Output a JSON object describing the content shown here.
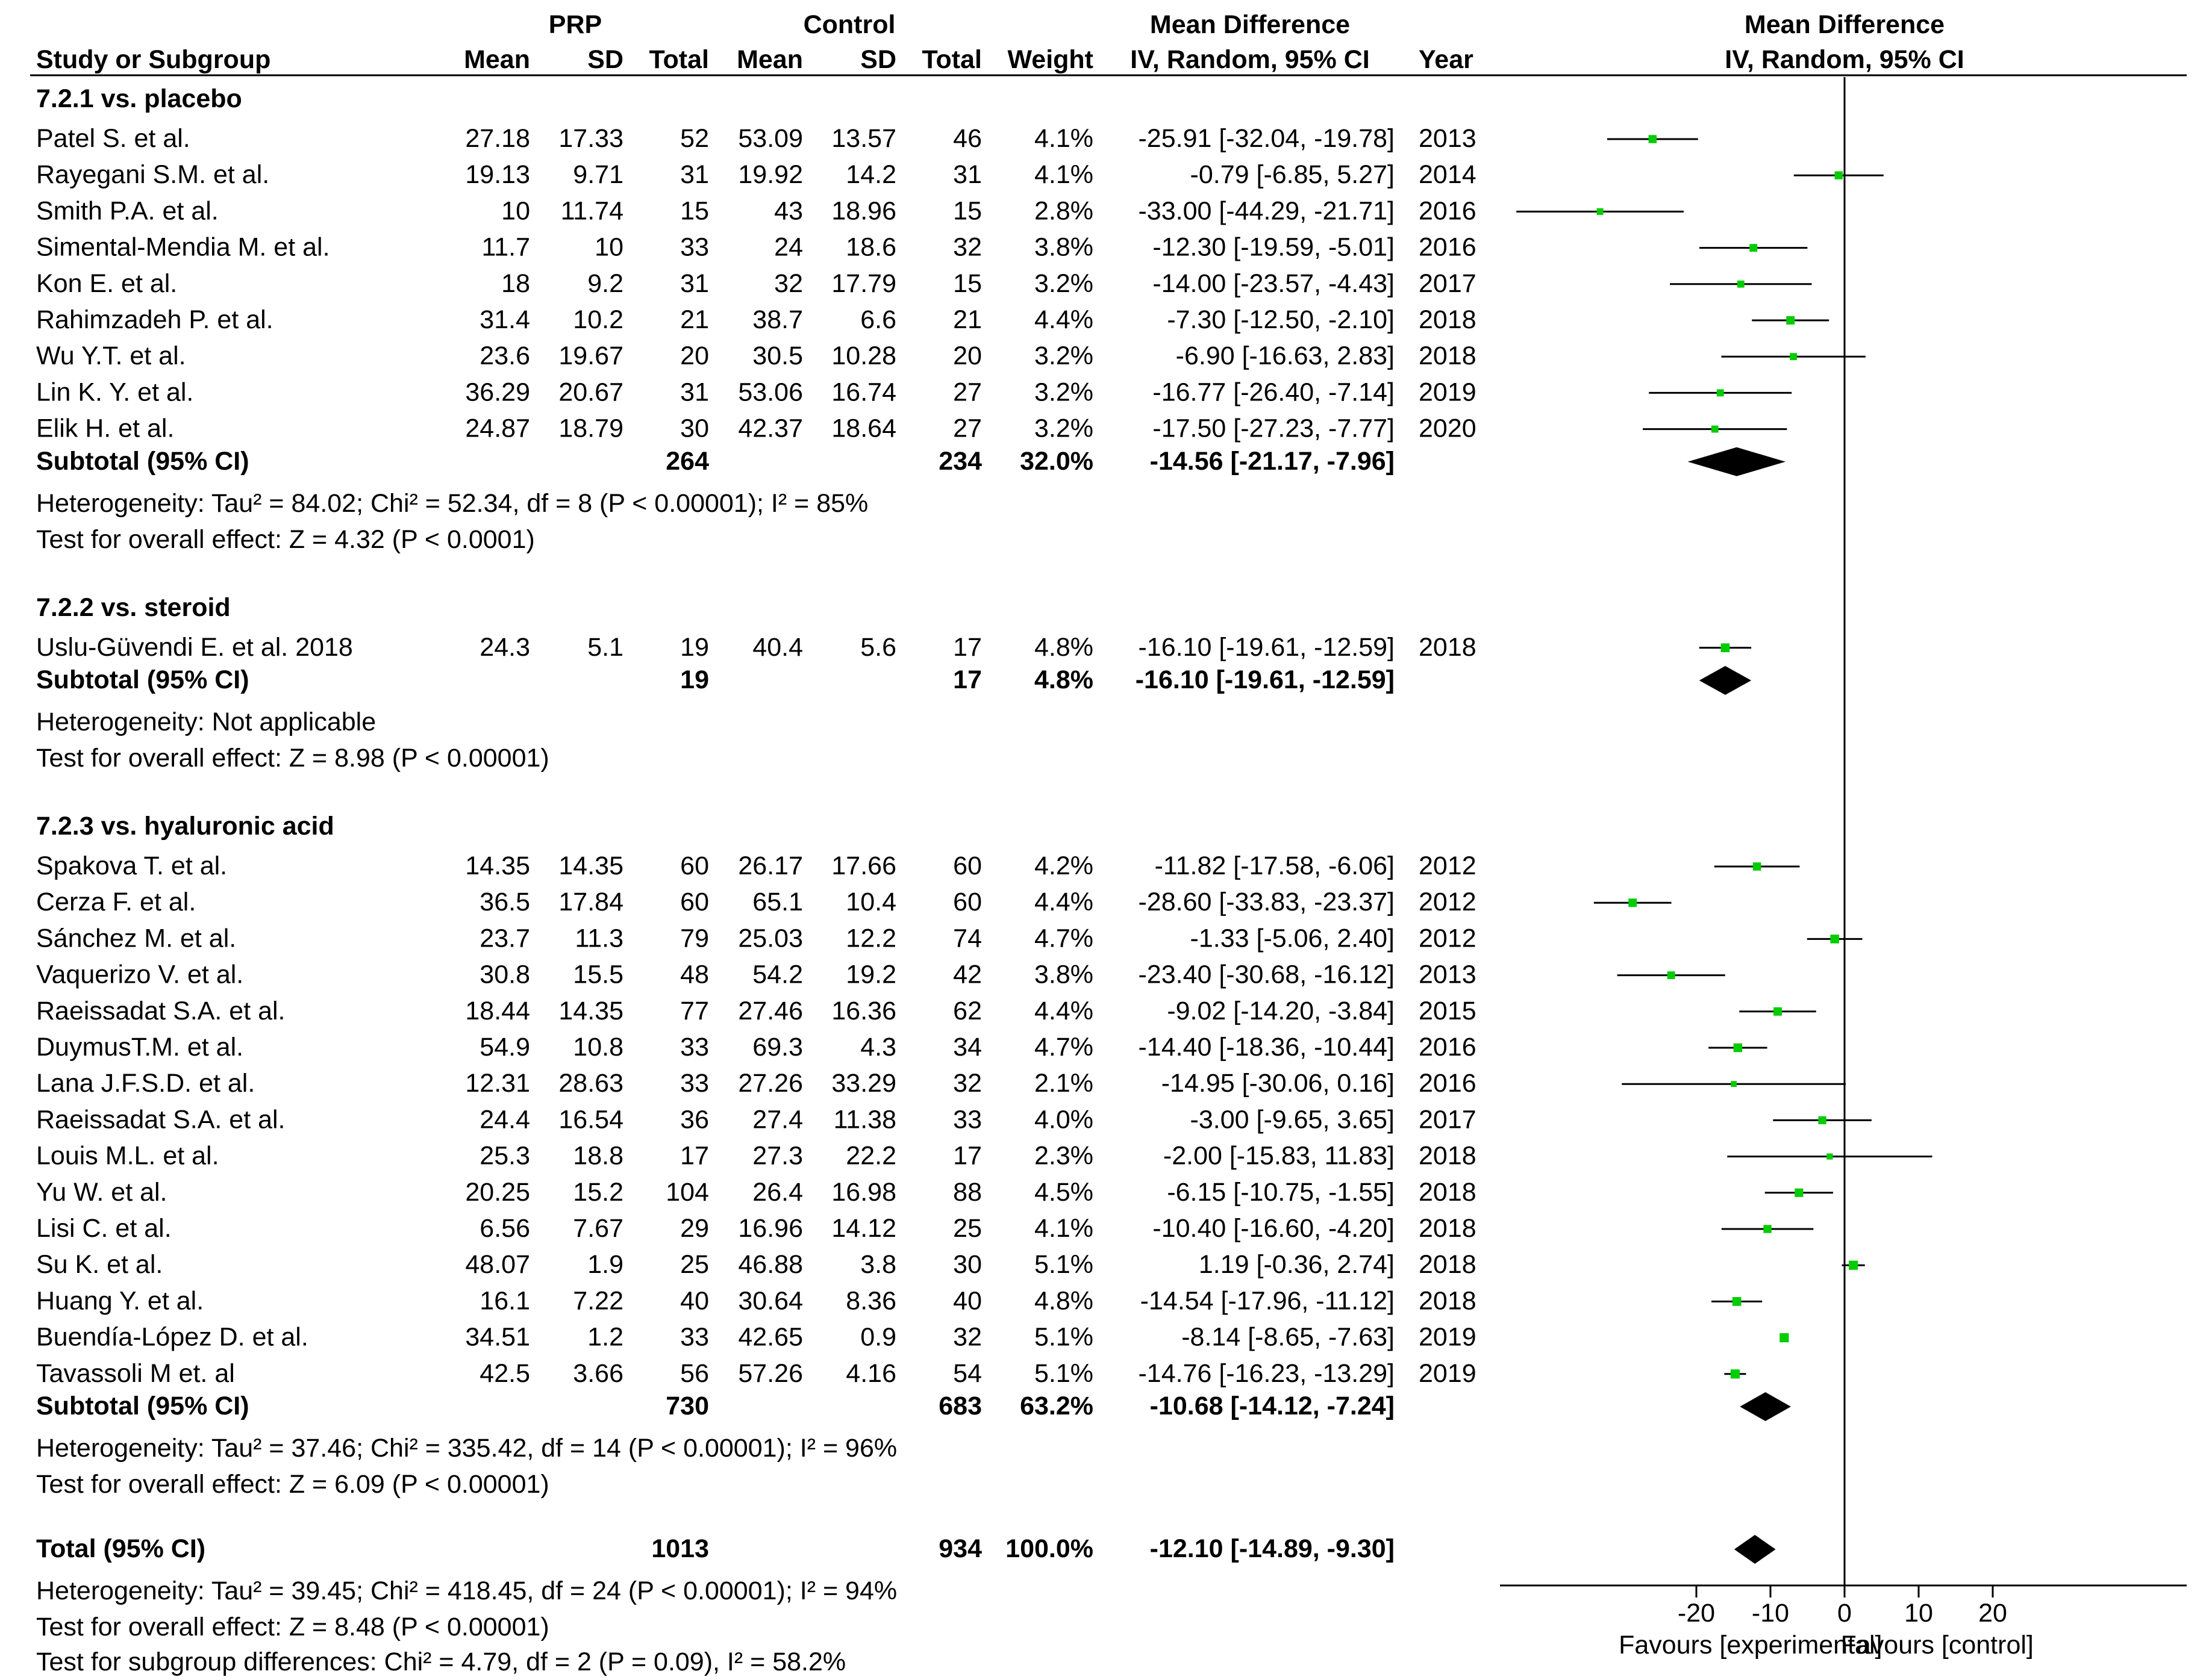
{
  "header": {
    "group_exp": "PRP",
    "group_ctl": "Control",
    "md_title": "Mean Difference",
    "md_method": "IV, Random, 95% CI",
    "col_study": "Study or Subgroup",
    "col_mean": "Mean",
    "col_sd": "SD",
    "col_total": "Total",
    "col_weight": "Weight",
    "col_year": "Year",
    "plot_title": "Mean Difference",
    "plot_method": "IV, Random, 95% CI"
  },
  "chart_data": {
    "type": "forest",
    "measure": "Mean Difference (IV, Random, 95% CI)",
    "xlim": [
      -45,
      48
    ],
    "ticks": [
      -20,
      -10,
      0,
      10,
      20
    ],
    "tick_labels": [
      "-20",
      "-10",
      "0",
      "10",
      "20"
    ],
    "favours_left": "Favours [experimental]",
    "favours_right": "Favours [control]",
    "point_color": "#00cc00",
    "groups": [
      {
        "title": "7.2.1 vs. placebo",
        "studies": [
          {
            "name": "Patel S. et al.",
            "m1": "27.18",
            "sd1": "17.33",
            "n1": "52",
            "m2": "53.09",
            "sd2": "13.57",
            "n2": "46",
            "weight": "4.1%",
            "ci": "-25.91 [-32.04, -19.78]",
            "year": "2013",
            "md": -25.91,
            "lo": -32.04,
            "hi": -19.78
          },
          {
            "name": "Rayegani S.M. et al.",
            "m1": "19.13",
            "sd1": "9.71",
            "n1": "31",
            "m2": "19.92",
            "sd2": "14.2",
            "n2": "31",
            "weight": "4.1%",
            "ci": "-0.79 [-6.85, 5.27]",
            "year": "2014",
            "md": -0.79,
            "lo": -6.85,
            "hi": 5.27
          },
          {
            "name": "Smith P.A. et al.",
            "m1": "10",
            "sd1": "11.74",
            "n1": "15",
            "m2": "43",
            "sd2": "18.96",
            "n2": "15",
            "weight": "2.8%",
            "ci": "-33.00 [-44.29, -21.71]",
            "year": "2016",
            "md": -33.0,
            "lo": -44.29,
            "hi": -21.71
          },
          {
            "name": "Simental-Mendia M. et al.",
            "m1": "11.7",
            "sd1": "10",
            "n1": "33",
            "m2": "24",
            "sd2": "18.6",
            "n2": "32",
            "weight": "3.8%",
            "ci": "-12.30 [-19.59, -5.01]",
            "year": "2016",
            "md": -12.3,
            "lo": -19.59,
            "hi": -5.01
          },
          {
            "name": "Kon E. et al.",
            "m1": "18",
            "sd1": "9.2",
            "n1": "31",
            "m2": "32",
            "sd2": "17.79",
            "n2": "15",
            "weight": "3.2%",
            "ci": "-14.00 [-23.57, -4.43]",
            "year": "2017",
            "md": -14.0,
            "lo": -23.57,
            "hi": -4.43
          },
          {
            "name": "Rahimzadeh P. et al.",
            "m1": "31.4",
            "sd1": "10.2",
            "n1": "21",
            "m2": "38.7",
            "sd2": "6.6",
            "n2": "21",
            "weight": "4.4%",
            "ci": "-7.30 [-12.50, -2.10]",
            "year": "2018",
            "md": -7.3,
            "lo": -12.5,
            "hi": -2.1
          },
          {
            "name": "Wu Y.T. et al.",
            "m1": "23.6",
            "sd1": "19.67",
            "n1": "20",
            "m2": "30.5",
            "sd2": "10.28",
            "n2": "20",
            "weight": "3.2%",
            "ci": "-6.90 [-16.63, 2.83]",
            "year": "2018",
            "md": -6.9,
            "lo": -16.63,
            "hi": 2.83
          },
          {
            "name": "Lin K. Y. et al.",
            "m1": "36.29",
            "sd1": "20.67",
            "n1": "31",
            "m2": "53.06",
            "sd2": "16.74",
            "n2": "27",
            "weight": "3.2%",
            "ci": "-16.77 [-26.40, -7.14]",
            "year": "2019",
            "md": -16.77,
            "lo": -26.4,
            "hi": -7.14
          },
          {
            "name": "Elik H. et al.",
            "m1": "24.87",
            "sd1": "18.79",
            "n1": "30",
            "m2": "42.37",
            "sd2": "18.64",
            "n2": "27",
            "weight": "3.2%",
            "ci": "-17.50 [-27.23, -7.77]",
            "year": "2020",
            "md": -17.5,
            "lo": -27.23,
            "hi": -7.77
          }
        ],
        "subtotal": {
          "label": "Subtotal (95% CI)",
          "n1": "264",
          "n2": "234",
          "weight": "32.0%",
          "ci": "-14.56 [-21.17, -7.96]",
          "md": -14.56,
          "lo": -21.17,
          "hi": -7.96
        },
        "heterogeneity": "Heterogeneity: Tau² = 84.02; Chi² = 52.34, df = 8 (P < 0.00001); I² = 85%",
        "overall": "Test for overall effect: Z = 4.32 (P < 0.0001)"
      },
      {
        "title": "7.2.2 vs. steroid",
        "studies": [
          {
            "name": "Uslu-Güvendi E. et al. 2018",
            "m1": "24.3",
            "sd1": "5.1",
            "n1": "19",
            "m2": "40.4",
            "sd2": "5.6",
            "n2": "17",
            "weight": "4.8%",
            "ci": "-16.10 [-19.61, -12.59]",
            "year": "2018",
            "md": -16.1,
            "lo": -19.61,
            "hi": -12.59
          }
        ],
        "subtotal": {
          "label": "Subtotal (95% CI)",
          "n1": "19",
          "n2": "17",
          "weight": "4.8%",
          "ci": "-16.10 [-19.61, -12.59]",
          "md": -16.1,
          "lo": -19.61,
          "hi": -12.59
        },
        "heterogeneity": "Heterogeneity: Not applicable",
        "overall": "Test for overall effect: Z = 8.98 (P < 0.00001)"
      },
      {
        "title": "7.2.3 vs. hyaluronic acid",
        "studies": [
          {
            "name": "Spakova T. et al.",
            "m1": "14.35",
            "sd1": "14.35",
            "n1": "60",
            "m2": "26.17",
            "sd2": "17.66",
            "n2": "60",
            "weight": "4.2%",
            "ci": "-11.82 [-17.58, -6.06]",
            "year": "2012",
            "md": -11.82,
            "lo": -17.58,
            "hi": -6.06
          },
          {
            "name": "Cerza F. et al.",
            "m1": "36.5",
            "sd1": "17.84",
            "n1": "60",
            "m2": "65.1",
            "sd2": "10.4",
            "n2": "60",
            "weight": "4.4%",
            "ci": "-28.60 [-33.83, -23.37]",
            "year": "2012",
            "md": -28.6,
            "lo": -33.83,
            "hi": -23.37
          },
          {
            "name": "Sánchez M. et al.",
            "m1": "23.7",
            "sd1": "11.3",
            "n1": "79",
            "m2": "25.03",
            "sd2": "12.2",
            "n2": "74",
            "weight": "4.7%",
            "ci": "-1.33 [-5.06, 2.40]",
            "year": "2012",
            "md": -1.33,
            "lo": -5.06,
            "hi": 2.4
          },
          {
            "name": "Vaquerizo V. et al.",
            "m1": "30.8",
            "sd1": "15.5",
            "n1": "48",
            "m2": "54.2",
            "sd2": "19.2",
            "n2": "42",
            "weight": "3.8%",
            "ci": "-23.40 [-30.68, -16.12]",
            "year": "2013",
            "md": -23.4,
            "lo": -30.68,
            "hi": -16.12
          },
          {
            "name": "Raeissadat S.A. et al.",
            "m1": "18.44",
            "sd1": "14.35",
            "n1": "77",
            "m2": "27.46",
            "sd2": "16.36",
            "n2": "62",
            "weight": "4.4%",
            "ci": "-9.02 [-14.20, -3.84]",
            "year": "2015",
            "md": -9.02,
            "lo": -14.2,
            "hi": -3.84
          },
          {
            "name": "DuymusT.M. et al.",
            "m1": "54.9",
            "sd1": "10.8",
            "n1": "33",
            "m2": "69.3",
            "sd2": "4.3",
            "n2": "34",
            "weight": "4.7%",
            "ci": "-14.40 [-18.36, -10.44]",
            "year": "2016",
            "md": -14.4,
            "lo": -18.36,
            "hi": -10.44
          },
          {
            "name": "Lana J.F.S.D. et al.",
            "m1": "12.31",
            "sd1": "28.63",
            "n1": "33",
            "m2": "27.26",
            "sd2": "33.29",
            "n2": "32",
            "weight": "2.1%",
            "ci": "-14.95 [-30.06, 0.16]",
            "year": "2016",
            "md": -14.95,
            "lo": -30.06,
            "hi": 0.16
          },
          {
            "name": "Raeissadat S.A. et al.",
            "m1": "24.4",
            "sd1": "16.54",
            "n1": "36",
            "m2": "27.4",
            "sd2": "11.38",
            "n2": "33",
            "weight": "4.0%",
            "ci": "-3.00 [-9.65, 3.65]",
            "year": "2017",
            "md": -3.0,
            "lo": -9.65,
            "hi": 3.65
          },
          {
            "name": "Louis M.L. et al.",
            "m1": "25.3",
            "sd1": "18.8",
            "n1": "17",
            "m2": "27.3",
            "sd2": "22.2",
            "n2": "17",
            "weight": "2.3%",
            "ci": "-2.00 [-15.83, 11.83]",
            "year": "2018",
            "md": -2.0,
            "lo": -15.83,
            "hi": 11.83
          },
          {
            "name": "Yu W. et al.",
            "m1": "20.25",
            "sd1": "15.2",
            "n1": "104",
            "m2": "26.4",
            "sd2": "16.98",
            "n2": "88",
            "weight": "4.5%",
            "ci": "-6.15 [-10.75, -1.55]",
            "year": "2018",
            "md": -6.15,
            "lo": -10.75,
            "hi": -1.55
          },
          {
            "name": "Lisi C. et al.",
            "m1": "6.56",
            "sd1": "7.67",
            "n1": "29",
            "m2": "16.96",
            "sd2": "14.12",
            "n2": "25",
            "weight": "4.1%",
            "ci": "-10.40 [-16.60, -4.20]",
            "year": "2018",
            "md": -10.4,
            "lo": -16.6,
            "hi": -4.2
          },
          {
            "name": "Su K. et al.",
            "m1": "48.07",
            "sd1": "1.9",
            "n1": "25",
            "m2": "46.88",
            "sd2": "3.8",
            "n2": "30",
            "weight": "5.1%",
            "ci": "1.19 [-0.36, 2.74]",
            "year": "2018",
            "md": 1.19,
            "lo": -0.36,
            "hi": 2.74
          },
          {
            "name": "Huang Y. et al.",
            "m1": "16.1",
            "sd1": "7.22",
            "n1": "40",
            "m2": "30.64",
            "sd2": "8.36",
            "n2": "40",
            "weight": "4.8%",
            "ci": "-14.54 [-17.96, -11.12]",
            "year": "2018",
            "md": -14.54,
            "lo": -17.96,
            "hi": -11.12
          },
          {
            "name": "Buendía-López D. et al.",
            "m1": "34.51",
            "sd1": "1.2",
            "n1": "33",
            "m2": "42.65",
            "sd2": "0.9",
            "n2": "32",
            "weight": "5.1%",
            "ci": "-8.14 [-8.65, -7.63]",
            "year": "2019",
            "md": -8.14,
            "lo": -8.65,
            "hi": -7.63
          },
          {
            "name": "Tavassoli M et. al",
            "m1": "42.5",
            "sd1": "3.66",
            "n1": "56",
            "m2": "57.26",
            "sd2": "4.16",
            "n2": "54",
            "weight": "5.1%",
            "ci": "-14.76 [-16.23, -13.29]",
            "year": "2019",
            "md": -14.76,
            "lo": -16.23,
            "hi": -13.29
          }
        ],
        "subtotal": {
          "label": "Subtotal (95% CI)",
          "n1": "730",
          "n2": "683",
          "weight": "63.2%",
          "ci": "-10.68 [-14.12, -7.24]",
          "md": -10.68,
          "lo": -14.12,
          "hi": -7.24
        },
        "heterogeneity": "Heterogeneity: Tau² = 37.46; Chi² = 335.42, df = 14 (P < 0.00001); I² = 96%",
        "overall": "Test for overall effect: Z = 6.09 (P < 0.00001)"
      }
    ],
    "total": {
      "label": "Total (95% CI)",
      "n1": "1013",
      "n2": "934",
      "weight": "100.0%",
      "ci": "-12.10 [-14.89, -9.30]",
      "md": -12.1,
      "lo": -14.89,
      "hi": -9.3
    },
    "total_heterogeneity": "Heterogeneity: Tau² = 39.45; Chi² = 418.45, df = 24 (P < 0.00001); I² = 94%",
    "total_overall": "Test for overall effect: Z = 8.48 (P < 0.00001)",
    "subgroup_diff": "Test for subgroup differences: Chi² = 4.79, df = 2 (P = 0.09), I² = 58.2%"
  }
}
